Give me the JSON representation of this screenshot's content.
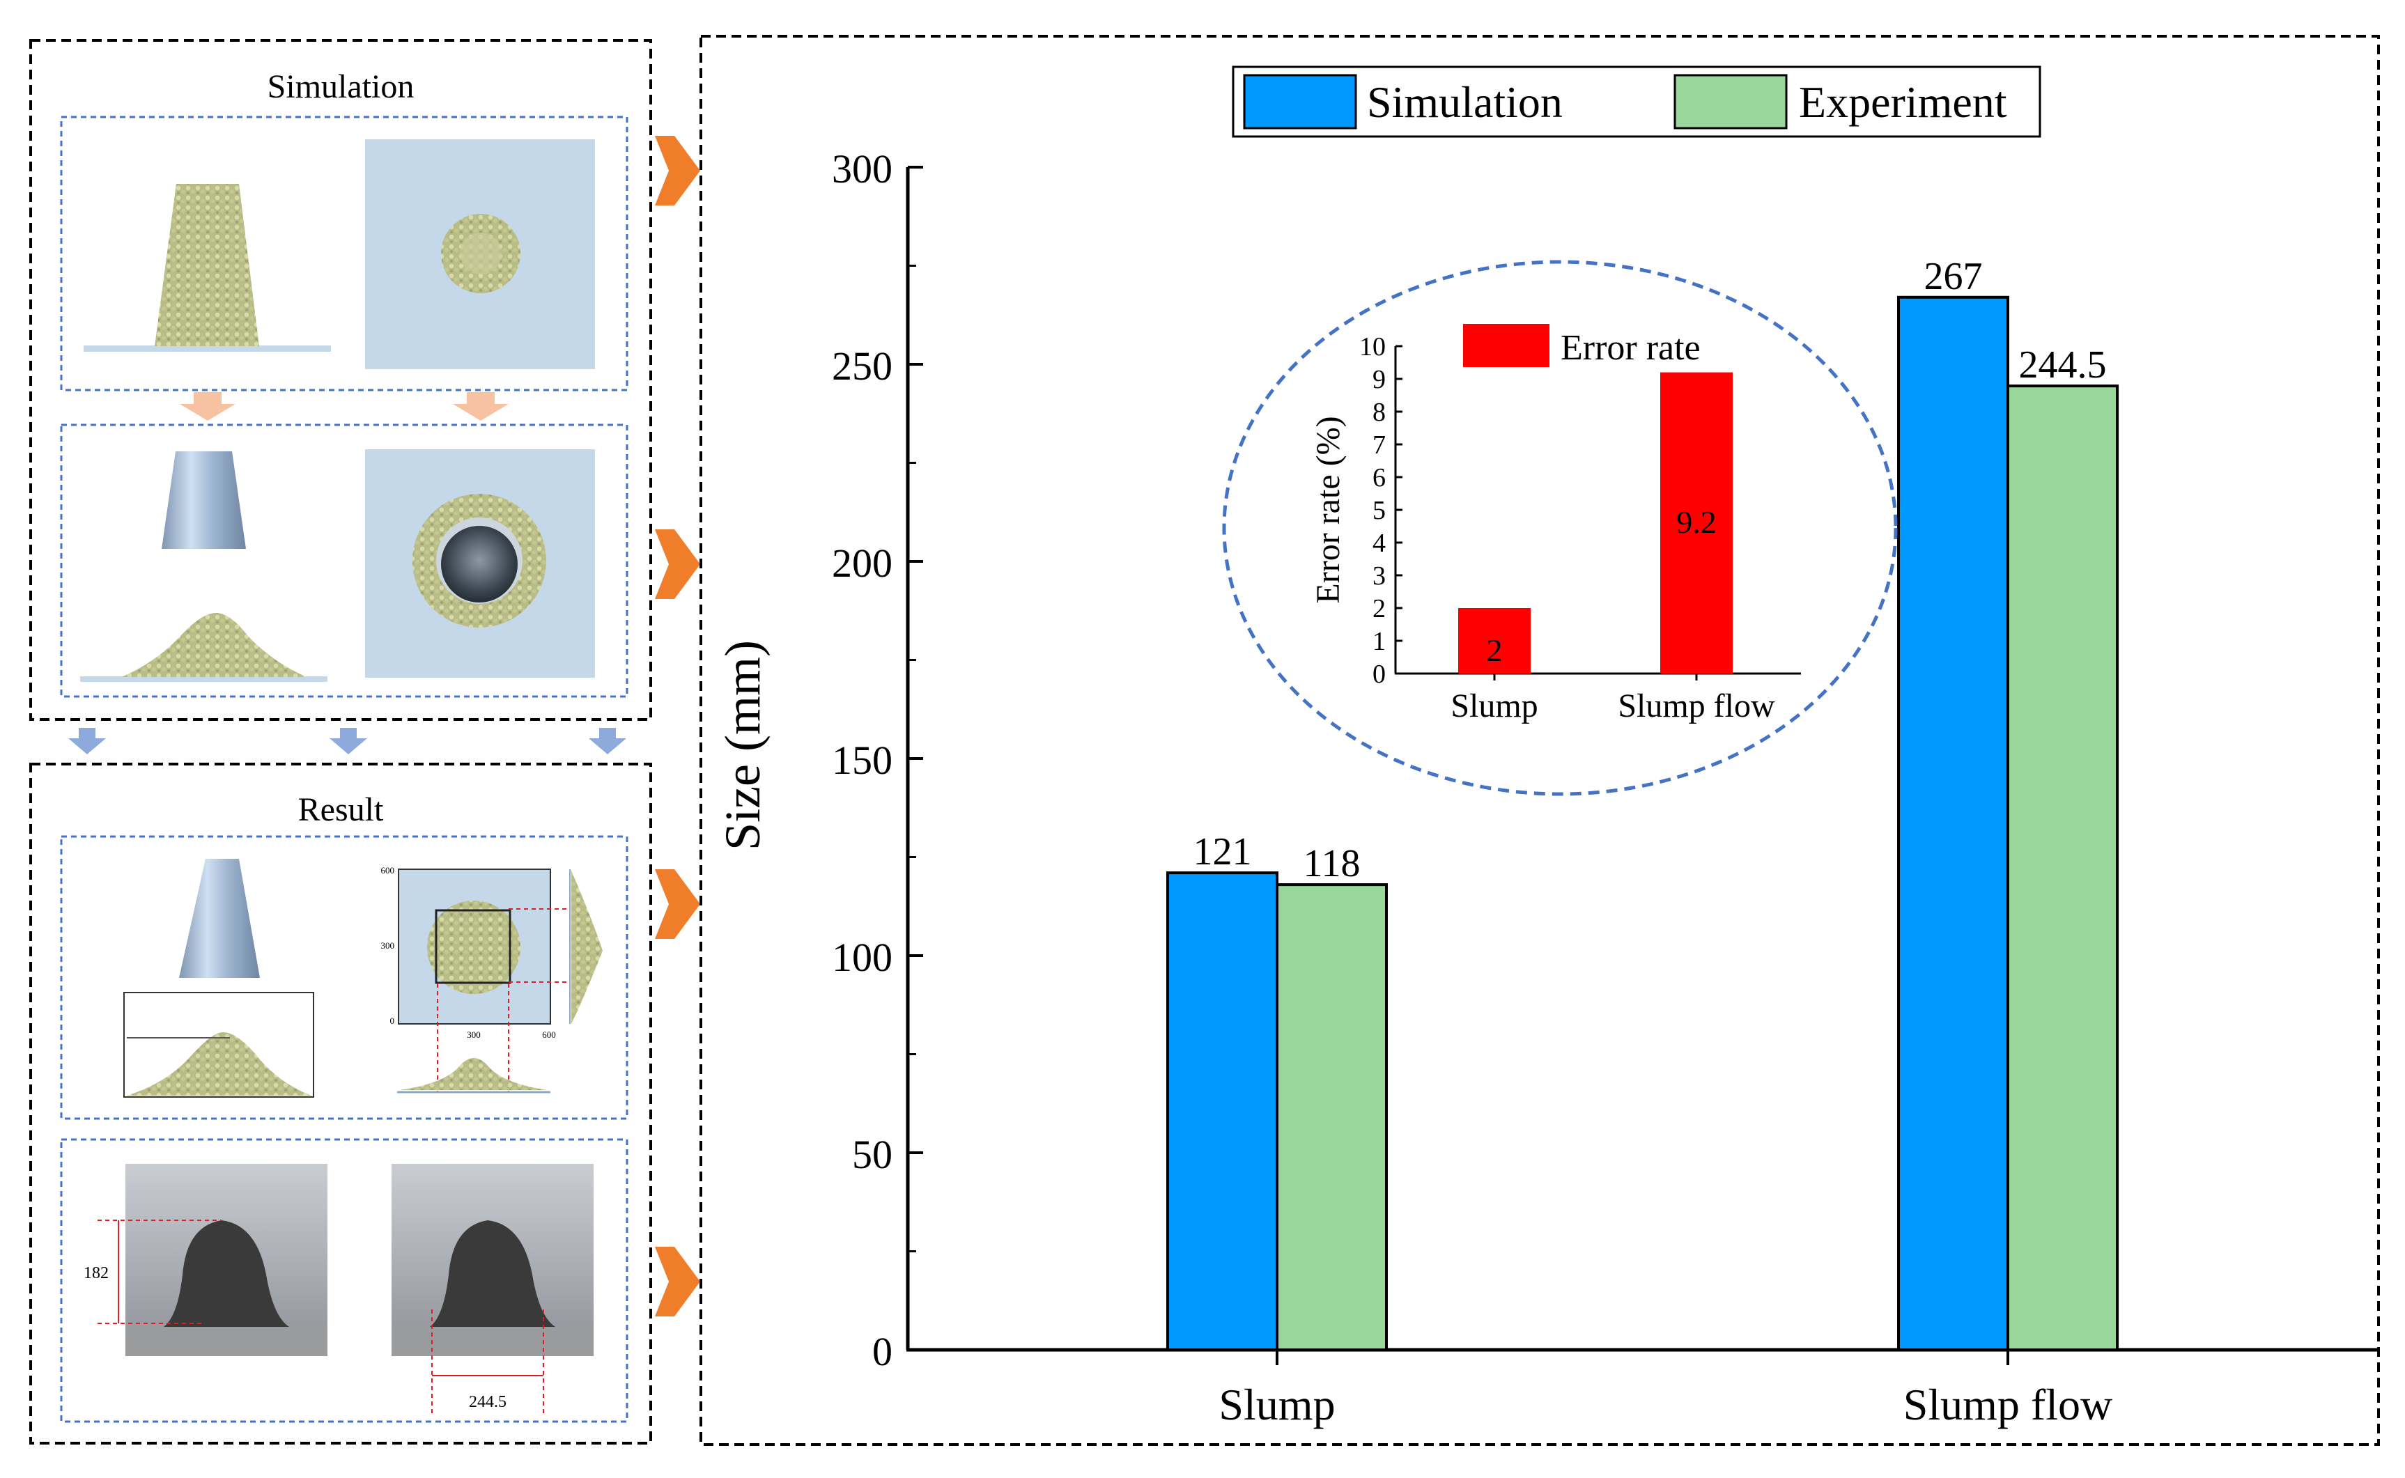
{
  "panels": {
    "simulation_title": "Simulation",
    "result_title": "Result",
    "measure_height": "182",
    "measure_spread": "244.5",
    "axis_small_ticks": [
      "600",
      "300",
      "0",
      "300",
      "600"
    ]
  },
  "colors": {
    "simulation": "#0099ff",
    "experiment": "#99d699",
    "error": "#ff0000",
    "arrow_orange": "#f07d2a",
    "arrow_blue": "#8eaadc",
    "arrow_peach": "#f7c2a2",
    "panel_blue": "#c5d8ea",
    "particle": "#c9c98e",
    "ellipse": "#4472c4"
  },
  "chart_data": [
    {
      "type": "bar",
      "title": "",
      "categories": [
        "Slump",
        "Slump flow"
      ],
      "series": [
        {
          "name": "Simulation",
          "values": [
            121,
            267
          ]
        },
        {
          "name": "Experiment",
          "values": [
            118,
            244.5
          ]
        }
      ],
      "value_labels": {
        "Simulation": [
          "121",
          "267"
        ],
        "Experiment": [
          "118",
          "244.5"
        ]
      },
      "xlabel": "",
      "ylabel": "Size (mm)",
      "ylim": [
        0,
        300
      ],
      "yticks": [
        0,
        50,
        100,
        150,
        200,
        250,
        300
      ],
      "legend": "top-center",
      "grid": false
    },
    {
      "type": "bar",
      "title": "",
      "categories": [
        "Slump",
        "Slump flow"
      ],
      "series": [
        {
          "name": "Error rate",
          "values": [
            2,
            9.2
          ]
        }
      ],
      "value_labels": [
        "2",
        "9.2"
      ],
      "xlabel": "",
      "ylabel": "Error rate (%)",
      "ylim": [
        0,
        10
      ],
      "yticks": [
        0,
        1,
        2,
        3,
        4,
        5,
        6,
        7,
        8,
        9,
        10
      ],
      "legend": "top",
      "grid": false
    }
  ]
}
